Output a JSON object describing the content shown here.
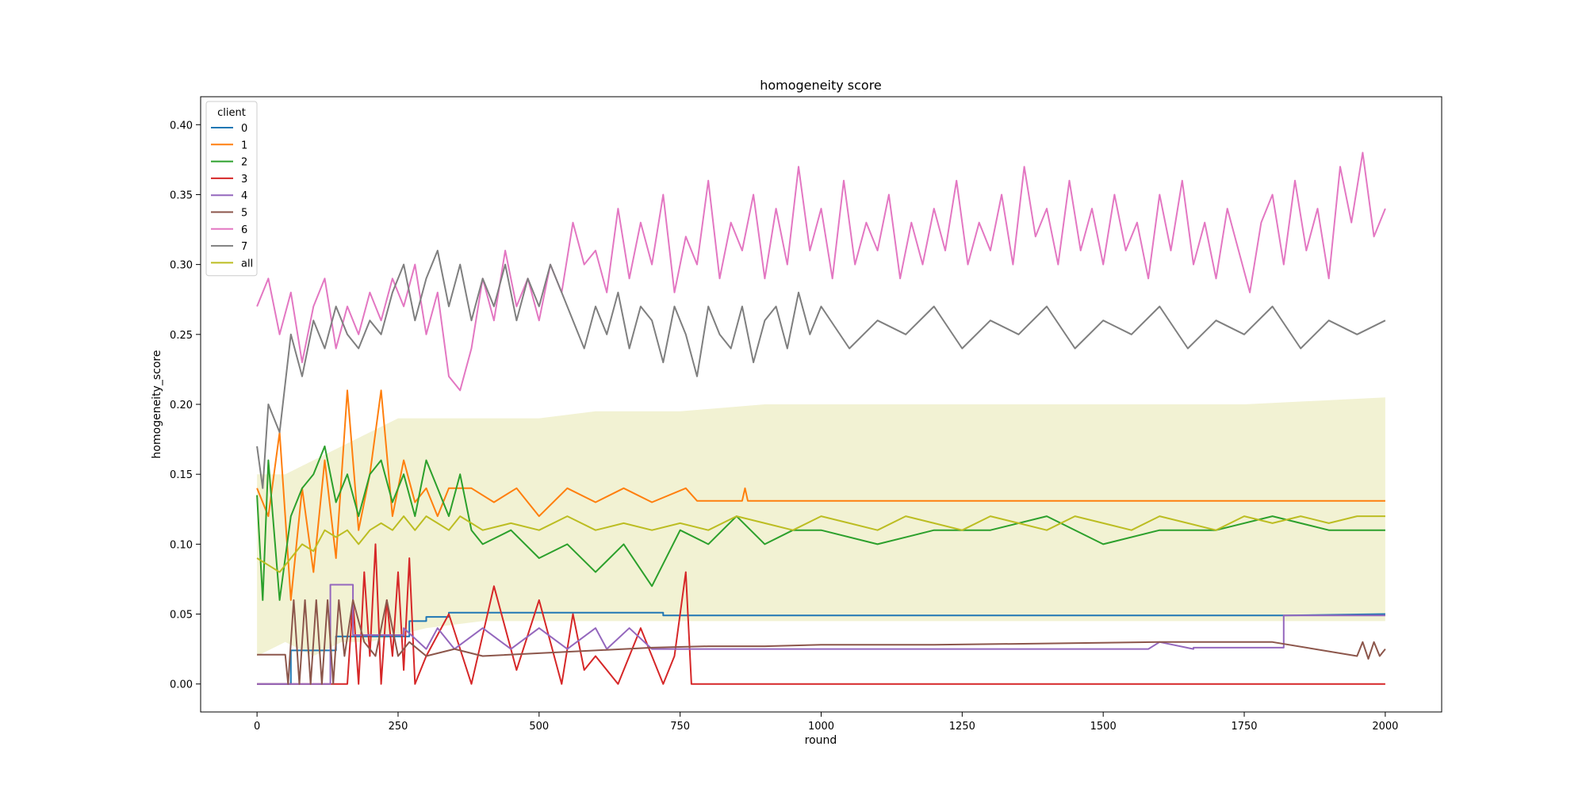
{
  "chart_data": {
    "type": "line",
    "title": "homogeneity score",
    "xlabel": "round",
    "ylabel": "homogeneity_score",
    "xlim": [
      -100,
      2100
    ],
    "ylim": [
      -0.02,
      0.42
    ],
    "xticks": [
      0,
      250,
      500,
      750,
      1000,
      1250,
      1500,
      1750,
      2000
    ],
    "yticks": [
      0.0,
      0.05,
      0.1,
      0.15,
      0.2,
      0.25,
      0.3,
      0.35,
      0.4
    ],
    "ytick_labels": [
      "0.00",
      "0.05",
      "0.10",
      "0.15",
      "0.20",
      "0.25",
      "0.30",
      "0.35",
      "0.40"
    ],
    "grid": false,
    "legend": {
      "title": "client",
      "position": "upper-left"
    },
    "band": {
      "series": "all",
      "x": [
        0,
        50,
        100,
        150,
        200,
        250,
        300,
        400,
        500,
        600,
        750,
        900,
        1000,
        1250,
        1500,
        1750,
        2000
      ],
      "lower": [
        0.02,
        0.03,
        0.02,
        0.03,
        0.03,
        0.035,
        0.04,
        0.045,
        0.045,
        0.045,
        0.045,
        0.045,
        0.045,
        0.045,
        0.045,
        0.045,
        0.045
      ],
      "upper": [
        0.15,
        0.15,
        0.16,
        0.17,
        0.18,
        0.19,
        0.19,
        0.19,
        0.19,
        0.195,
        0.195,
        0.2,
        0.2,
        0.2,
        0.2,
        0.2,
        0.205
      ]
    },
    "series": [
      {
        "name": "0",
        "color": "#1f77b4",
        "x": [
          0,
          60,
          60,
          140,
          140,
          270,
          270,
          300,
          300,
          340,
          340,
          720,
          720,
          1820,
          1820,
          2000
        ],
        "y": [
          0.0,
          0.0,
          0.024,
          0.024,
          0.034,
          0.034,
          0.045,
          0.045,
          0.048,
          0.048,
          0.051,
          0.051,
          0.049,
          0.049,
          0.049,
          0.05
        ]
      },
      {
        "name": "1",
        "color": "#ff7f0e",
        "x": [
          0,
          20,
          40,
          60,
          80,
          100,
          120,
          140,
          160,
          180,
          200,
          220,
          240,
          260,
          280,
          300,
          320,
          340,
          380,
          420,
          460,
          500,
          550,
          600,
          650,
          700,
          760,
          780,
          860,
          865,
          870,
          2000
        ],
        "y": [
          0.14,
          0.12,
          0.18,
          0.06,
          0.14,
          0.08,
          0.16,
          0.09,
          0.21,
          0.11,
          0.15,
          0.21,
          0.12,
          0.16,
          0.13,
          0.14,
          0.12,
          0.14,
          0.14,
          0.13,
          0.14,
          0.12,
          0.14,
          0.13,
          0.14,
          0.13,
          0.14,
          0.131,
          0.131,
          0.14,
          0.131,
          0.131
        ]
      },
      {
        "name": "2",
        "color": "#2ca02c",
        "x": [
          0,
          10,
          20,
          40,
          60,
          80,
          100,
          120,
          140,
          160,
          180,
          200,
          220,
          240,
          260,
          280,
          300,
          320,
          340,
          360,
          380,
          400,
          450,
          500,
          550,
          600,
          650,
          700,
          750,
          800,
          850,
          900,
          950,
          1000,
          1100,
          1200,
          1300,
          1400,
          1500,
          1600,
          1700,
          1800,
          1900,
          2000
        ],
        "y": [
          0.135,
          0.06,
          0.16,
          0.06,
          0.12,
          0.14,
          0.15,
          0.17,
          0.13,
          0.15,
          0.12,
          0.15,
          0.16,
          0.13,
          0.15,
          0.12,
          0.16,
          0.14,
          0.12,
          0.15,
          0.11,
          0.1,
          0.11,
          0.09,
          0.1,
          0.08,
          0.1,
          0.07,
          0.11,
          0.1,
          0.12,
          0.1,
          0.11,
          0.11,
          0.1,
          0.11,
          0.11,
          0.12,
          0.1,
          0.11,
          0.11,
          0.12,
          0.11,
          0.11
        ]
      },
      {
        "name": "3",
        "color": "#d62728",
        "x": [
          0,
          160,
          170,
          180,
          190,
          200,
          210,
          220,
          230,
          240,
          250,
          260,
          270,
          280,
          300,
          340,
          380,
          420,
          460,
          500,
          540,
          560,
          580,
          600,
          640,
          680,
          720,
          740,
          760,
          770,
          2000
        ],
        "y": [
          0.0,
          0.0,
          0.06,
          0.0,
          0.08,
          0.02,
          0.1,
          0.0,
          0.06,
          0.02,
          0.08,
          0.01,
          0.09,
          0.0,
          0.02,
          0.05,
          0.0,
          0.07,
          0.01,
          0.06,
          0.0,
          0.05,
          0.01,
          0.02,
          0.0,
          0.04,
          0.0,
          0.02,
          0.08,
          0.0,
          0.0
        ]
      },
      {
        "name": "4",
        "color": "#9467bd",
        "x": [
          0,
          130,
          130,
          170,
          170,
          260,
          260,
          300,
          320,
          350,
          400,
          450,
          500,
          550,
          600,
          620,
          660,
          700,
          720,
          1580,
          1600,
          1660,
          1660,
          1820,
          1820,
          2000
        ],
        "y": [
          0.0,
          0.0,
          0.071,
          0.071,
          0.035,
          0.035,
          0.04,
          0.025,
          0.04,
          0.025,
          0.04,
          0.025,
          0.04,
          0.025,
          0.04,
          0.025,
          0.04,
          0.025,
          0.025,
          0.025,
          0.03,
          0.025,
          0.026,
          0.026,
          0.049,
          0.049
        ]
      },
      {
        "name": "5",
        "color": "#8c564b",
        "x": [
          0,
          50,
          55,
          65,
          75,
          85,
          95,
          105,
          115,
          125,
          135,
          145,
          155,
          170,
          190,
          210,
          230,
          250,
          270,
          300,
          350,
          400,
          500,
          600,
          700,
          800,
          900,
          1000,
          1200,
          1400,
          1600,
          1800,
          1950,
          1960,
          1970,
          1980,
          1990,
          2000
        ],
        "y": [
          0.021,
          0.021,
          0.0,
          0.06,
          0.0,
          0.06,
          0.0,
          0.06,
          0.0,
          0.06,
          0.0,
          0.06,
          0.02,
          0.06,
          0.03,
          0.02,
          0.06,
          0.02,
          0.03,
          0.02,
          0.025,
          0.02,
          0.022,
          0.024,
          0.026,
          0.027,
          0.027,
          0.028,
          0.028,
          0.029,
          0.03,
          0.03,
          0.02,
          0.03,
          0.018,
          0.03,
          0.02,
          0.025
        ]
      },
      {
        "name": "6",
        "color": "#e377c2",
        "x": [
          0,
          20,
          40,
          60,
          80,
          100,
          120,
          140,
          160,
          180,
          200,
          220,
          240,
          260,
          280,
          300,
          320,
          340,
          360,
          380,
          400,
          420,
          440,
          460,
          480,
          500,
          520,
          540,
          560,
          580,
          600,
          620,
          640,
          660,
          680,
          700,
          720,
          740,
          760,
          780,
          800,
          820,
          840,
          860,
          880,
          900,
          920,
          940,
          960,
          980,
          1000,
          1020,
          1040,
          1060,
          1080,
          1100,
          1120,
          1140,
          1160,
          1180,
          1200,
          1220,
          1240,
          1260,
          1280,
          1300,
          1320,
          1340,
          1360,
          1380,
          1400,
          1420,
          1440,
          1460,
          1480,
          1500,
          1520,
          1540,
          1560,
          1580,
          1600,
          1620,
          1640,
          1660,
          1680,
          1700,
          1720,
          1740,
          1760,
          1780,
          1800,
          1820,
          1840,
          1860,
          1880,
          1900,
          1920,
          1940,
          1960,
          1980,
          2000
        ],
        "y": [
          0.27,
          0.29,
          0.25,
          0.28,
          0.23,
          0.27,
          0.29,
          0.24,
          0.27,
          0.25,
          0.28,
          0.26,
          0.29,
          0.27,
          0.3,
          0.25,
          0.28,
          0.22,
          0.21,
          0.24,
          0.29,
          0.26,
          0.31,
          0.27,
          0.29,
          0.26,
          0.3,
          0.28,
          0.33,
          0.3,
          0.31,
          0.28,
          0.34,
          0.29,
          0.33,
          0.3,
          0.35,
          0.28,
          0.32,
          0.3,
          0.36,
          0.29,
          0.33,
          0.31,
          0.35,
          0.29,
          0.34,
          0.3,
          0.37,
          0.31,
          0.34,
          0.29,
          0.36,
          0.3,
          0.33,
          0.31,
          0.35,
          0.29,
          0.33,
          0.3,
          0.34,
          0.31,
          0.36,
          0.3,
          0.33,
          0.31,
          0.35,
          0.3,
          0.37,
          0.32,
          0.34,
          0.3,
          0.36,
          0.31,
          0.34,
          0.3,
          0.35,
          0.31,
          0.33,
          0.29,
          0.35,
          0.31,
          0.36,
          0.3,
          0.33,
          0.29,
          0.34,
          0.31,
          0.28,
          0.33,
          0.35,
          0.3,
          0.36,
          0.31,
          0.34,
          0.29,
          0.37,
          0.33,
          0.38,
          0.32,
          0.34
        ]
      },
      {
        "name": "7",
        "color": "#7f7f7f",
        "x": [
          0,
          10,
          20,
          40,
          60,
          80,
          100,
          120,
          140,
          160,
          180,
          200,
          220,
          240,
          260,
          280,
          300,
          320,
          340,
          360,
          380,
          400,
          420,
          440,
          460,
          480,
          500,
          520,
          540,
          560,
          580,
          600,
          620,
          640,
          660,
          680,
          700,
          720,
          740,
          760,
          780,
          800,
          820,
          840,
          860,
          880,
          900,
          920,
          940,
          960,
          980,
          1000,
          1050,
          1100,
          1150,
          1200,
          1250,
          1300,
          1350,
          1400,
          1450,
          1500,
          1550,
          1600,
          1650,
          1700,
          1750,
          1800,
          1850,
          1900,
          1950,
          2000
        ],
        "y": [
          0.17,
          0.14,
          0.2,
          0.18,
          0.25,
          0.22,
          0.26,
          0.24,
          0.27,
          0.25,
          0.24,
          0.26,
          0.25,
          0.28,
          0.3,
          0.26,
          0.29,
          0.31,
          0.27,
          0.3,
          0.26,
          0.29,
          0.27,
          0.3,
          0.26,
          0.29,
          0.27,
          0.3,
          0.28,
          0.26,
          0.24,
          0.27,
          0.25,
          0.28,
          0.24,
          0.27,
          0.26,
          0.23,
          0.27,
          0.25,
          0.22,
          0.27,
          0.25,
          0.24,
          0.27,
          0.23,
          0.26,
          0.27,
          0.24,
          0.28,
          0.25,
          0.27,
          0.24,
          0.26,
          0.25,
          0.27,
          0.24,
          0.26,
          0.25,
          0.27,
          0.24,
          0.26,
          0.25,
          0.27,
          0.24,
          0.26,
          0.25,
          0.27,
          0.24,
          0.26,
          0.25,
          0.26
        ]
      },
      {
        "name": "all",
        "color": "#bcbd22",
        "x": [
          0,
          20,
          40,
          60,
          80,
          100,
          120,
          140,
          160,
          180,
          200,
          220,
          240,
          260,
          280,
          300,
          320,
          340,
          360,
          380,
          400,
          450,
          500,
          550,
          600,
          650,
          700,
          750,
          800,
          850,
          900,
          950,
          1000,
          1050,
          1100,
          1150,
          1200,
          1250,
          1300,
          1350,
          1400,
          1450,
          1500,
          1550,
          1600,
          1650,
          1700,
          1750,
          1800,
          1850,
          1900,
          1950,
          2000
        ],
        "y": [
          0.09,
          0.085,
          0.08,
          0.09,
          0.1,
          0.095,
          0.11,
          0.105,
          0.11,
          0.1,
          0.11,
          0.115,
          0.11,
          0.12,
          0.11,
          0.12,
          0.115,
          0.11,
          0.12,
          0.115,
          0.11,
          0.115,
          0.11,
          0.12,
          0.11,
          0.115,
          0.11,
          0.115,
          0.11,
          0.12,
          0.115,
          0.11,
          0.12,
          0.115,
          0.11,
          0.12,
          0.115,
          0.11,
          0.12,
          0.115,
          0.11,
          0.12,
          0.115,
          0.11,
          0.12,
          0.115,
          0.11,
          0.12,
          0.115,
          0.12,
          0.115,
          0.12,
          0.12
        ]
      }
    ]
  }
}
